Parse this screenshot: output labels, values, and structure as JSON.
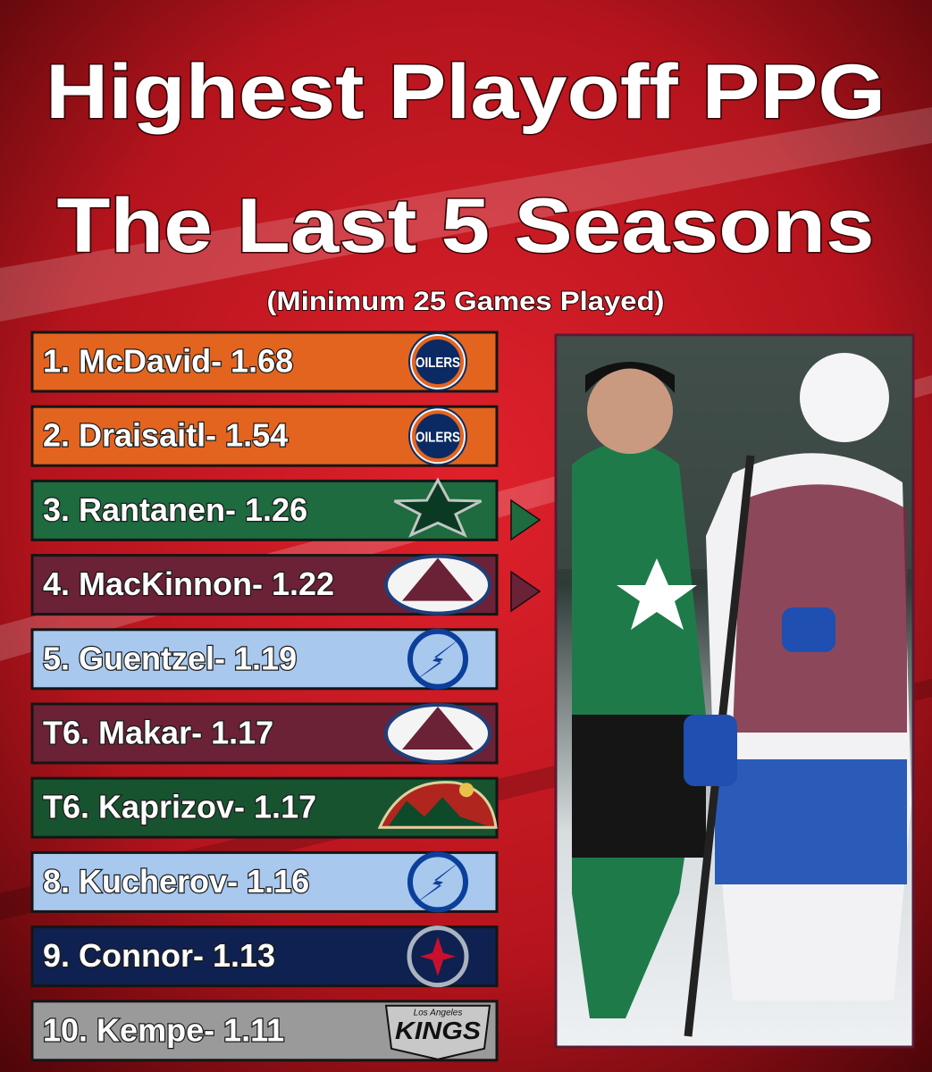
{
  "header": {
    "title_lines": [
      "Highest Playoff PPG",
      "The Last 5 Seasons"
    ],
    "subtitle": "(Minimum 25 Games Played)"
  },
  "rows": [
    {
      "label": "1. McDavid- 1.68",
      "color": "#e3641f",
      "logo_text": [
        "OILERS"
      ]
    },
    {
      "label": "2. Draisaitl- 1.54",
      "color": "#e3641f",
      "logo_text": [
        "OILERS"
      ]
    },
    {
      "label": "3. Rantanen- 1.26",
      "color": "#1d6b3e"
    },
    {
      "label": "4. MacKinnon- 1.22",
      "color": "#6b2136"
    },
    {
      "label": "5. Guentzel- 1.19",
      "color": "#a8c8ee"
    },
    {
      "label": "T6. Makar- 1.17",
      "color": "#6b2136"
    },
    {
      "label": "T6. Kaprizov- 1.17",
      "color": "#17532f"
    },
    {
      "label": "8. Kucherov- 1.16",
      "color": "#a8c8ee"
    },
    {
      "label": "9. Connor- 1.13",
      "color": "#0f2150"
    },
    {
      "label": "10. Kempe- 1.11",
      "color": "#9a9a9a",
      "logo_text": [
        "Los Angeles",
        "KINGS"
      ]
    }
  ]
}
